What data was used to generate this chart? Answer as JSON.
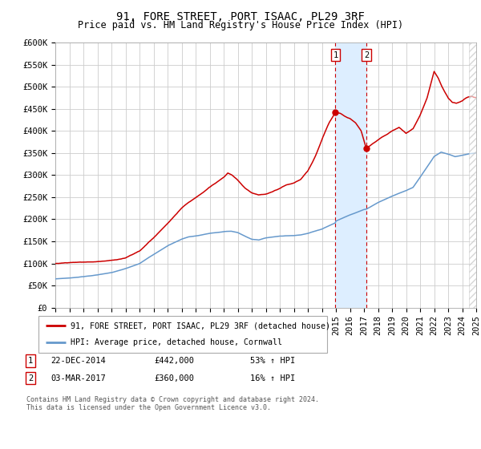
{
  "title": "91, FORE STREET, PORT ISAAC, PL29 3RF",
  "subtitle": "Price paid vs. HM Land Registry's House Price Index (HPI)",
  "ylabel_ticks": [
    "£0",
    "£50K",
    "£100K",
    "£150K",
    "£200K",
    "£250K",
    "£300K",
    "£350K",
    "£400K",
    "£450K",
    "£500K",
    "£550K",
    "£600K"
  ],
  "ytick_values": [
    0,
    50000,
    100000,
    150000,
    200000,
    250000,
    300000,
    350000,
    400000,
    450000,
    500000,
    550000,
    600000
  ],
  "x_start_year": 1995,
  "x_end_year": 2025,
  "sale1_date": 2014.97,
  "sale1_price": 442000,
  "sale2_date": 2017.17,
  "sale2_price": 360000,
  "red_line_color": "#cc0000",
  "blue_line_color": "#6699cc",
  "shaded_region_color": "#ddeeff",
  "legend_entry1": "91, FORE STREET, PORT ISAAC, PL29 3RF (detached house)",
  "legend_entry2": "HPI: Average price, detached house, Cornwall",
  "footer": "Contains HM Land Registry data © Crown copyright and database right 2024.\nThis data is licensed under the Open Government Licence v3.0.",
  "bg_color": "#ffffff",
  "grid_color": "#cccccc",
  "title_fontsize": 10,
  "subtitle_fontsize": 8.5,
  "tick_fontsize": 7.5,
  "hpi_keypoints": [
    [
      1995.0,
      65000
    ],
    [
      1996.0,
      67000
    ],
    [
      1997.0,
      70000
    ],
    [
      1998.0,
      74000
    ],
    [
      1999.0,
      79000
    ],
    [
      2000.0,
      88000
    ],
    [
      2001.0,
      100000
    ],
    [
      2002.0,
      120000
    ],
    [
      2003.0,
      140000
    ],
    [
      2004.0,
      155000
    ],
    [
      2004.5,
      160000
    ],
    [
      2005.0,
      162000
    ],
    [
      2006.0,
      168000
    ],
    [
      2007.0,
      172000
    ],
    [
      2007.5,
      173000
    ],
    [
      2008.0,
      170000
    ],
    [
      2008.5,
      162000
    ],
    [
      2009.0,
      155000
    ],
    [
      2009.5,
      153000
    ],
    [
      2010.0,
      158000
    ],
    [
      2011.0,
      162000
    ],
    [
      2012.0,
      163000
    ],
    [
      2012.5,
      165000
    ],
    [
      2013.0,
      168000
    ],
    [
      2014.0,
      178000
    ],
    [
      2014.97,
      192000
    ],
    [
      2015.0,
      196000
    ],
    [
      2016.0,
      210000
    ],
    [
      2017.0,
      222000
    ],
    [
      2017.17,
      223000
    ],
    [
      2018.0,
      238000
    ],
    [
      2019.0,
      252000
    ],
    [
      2020.0,
      265000
    ],
    [
      2020.5,
      272000
    ],
    [
      2021.0,
      295000
    ],
    [
      2021.5,
      318000
    ],
    [
      2022.0,
      342000
    ],
    [
      2022.5,
      352000
    ],
    [
      2023.0,
      348000
    ],
    [
      2023.5,
      342000
    ],
    [
      2024.0,
      345000
    ],
    [
      2024.5,
      348000
    ],
    [
      2025.0,
      350000
    ]
  ],
  "red_keypoints": [
    [
      1995.0,
      100000
    ],
    [
      1996.0,
      102000
    ],
    [
      1997.0,
      103000
    ],
    [
      1998.0,
      104000
    ],
    [
      1999.0,
      107000
    ],
    [
      2000.0,
      112000
    ],
    [
      2001.0,
      128000
    ],
    [
      2002.0,
      158000
    ],
    [
      2003.0,
      190000
    ],
    [
      2004.0,
      225000
    ],
    [
      2004.5,
      238000
    ],
    [
      2005.0,
      248000
    ],
    [
      2006.0,
      272000
    ],
    [
      2007.0,
      295000
    ],
    [
      2007.3,
      305000
    ],
    [
      2007.6,
      300000
    ],
    [
      2008.0,
      288000
    ],
    [
      2008.5,
      272000
    ],
    [
      2009.0,
      260000
    ],
    [
      2009.5,
      255000
    ],
    [
      2010.0,
      258000
    ],
    [
      2010.5,
      262000
    ],
    [
      2011.0,
      270000
    ],
    [
      2011.5,
      278000
    ],
    [
      2012.0,
      282000
    ],
    [
      2012.5,
      290000
    ],
    [
      2013.0,
      310000
    ],
    [
      2013.5,
      340000
    ],
    [
      2014.0,
      380000
    ],
    [
      2014.5,
      418000
    ],
    [
      2014.97,
      442000
    ],
    [
      2015.3,
      440000
    ],
    [
      2015.7,
      432000
    ],
    [
      2016.0,
      428000
    ],
    [
      2016.4,
      418000
    ],
    [
      2016.8,
      400000
    ],
    [
      2017.17,
      360000
    ],
    [
      2017.5,
      368000
    ],
    [
      2018.0,
      380000
    ],
    [
      2018.5,
      390000
    ],
    [
      2019.0,
      400000
    ],
    [
      2019.5,
      408000
    ],
    [
      2020.0,
      395000
    ],
    [
      2020.5,
      405000
    ],
    [
      2021.0,
      435000
    ],
    [
      2021.5,
      475000
    ],
    [
      2022.0,
      535000
    ],
    [
      2022.3,
      520000
    ],
    [
      2022.5,
      505000
    ],
    [
      2022.7,
      492000
    ],
    [
      2023.0,
      475000
    ],
    [
      2023.3,
      465000
    ],
    [
      2023.6,
      462000
    ],
    [
      2024.0,
      468000
    ],
    [
      2024.3,
      475000
    ],
    [
      2024.6,
      478000
    ],
    [
      2025.0,
      476000
    ]
  ]
}
